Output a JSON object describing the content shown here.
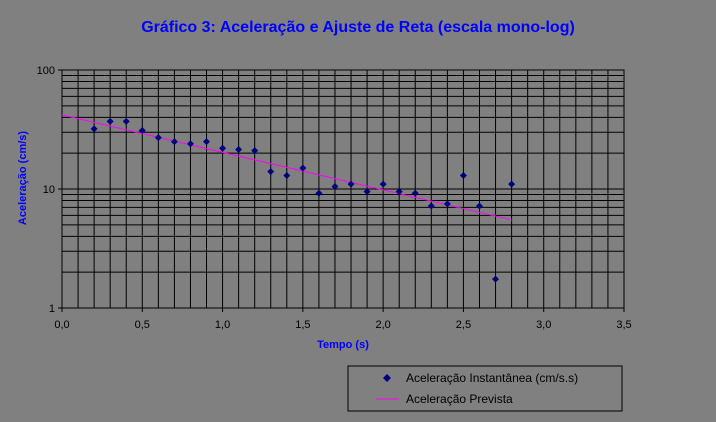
{
  "chart_data": {
    "type": "scatter",
    "title": "Gráfico 3: Aceleração e Ajuste de Reta (escala mono-log)",
    "xlabel": "Tempo (s)",
    "ylabel": "Aceleração (cm/s)",
    "xlim": [
      0,
      3.5
    ],
    "ylim": [
      1,
      100
    ],
    "yscale": "log",
    "x_ticks": [
      "0,0",
      "0,5",
      "1,0",
      "1,5",
      "2,0",
      "2,5",
      "3,0",
      "3,5"
    ],
    "y_ticks": [
      "1",
      "10",
      "100"
    ],
    "grid": true,
    "legend_position": "bottom-right",
    "series": [
      {
        "name": "Aceleração Instantânea (cm/s.s)",
        "kind": "scatter",
        "marker": "diamond",
        "color": "#000080",
        "x": [
          0.2,
          0.3,
          0.4,
          0.5,
          0.6,
          0.7,
          0.8,
          0.9,
          1.0,
          1.1,
          1.2,
          1.3,
          1.4,
          1.5,
          1.6,
          1.7,
          1.8,
          1.9,
          2.0,
          2.1,
          2.2,
          2.3,
          2.4,
          2.5,
          2.6,
          2.7,
          2.8
        ],
        "y": [
          32,
          37,
          37,
          31,
          27,
          25,
          24,
          25,
          22,
          21.5,
          21,
          14,
          13,
          15,
          9.2,
          10.5,
          11,
          9.5,
          11,
          9.5,
          9.2,
          7.2,
          7.5,
          13,
          7.2,
          1.75,
          11
        ]
      },
      {
        "name": "Aceleração Prevista",
        "kind": "line",
        "color": "#ff00ff",
        "x": [
          0.0,
          2.8
        ],
        "y": [
          42,
          5.5
        ]
      }
    ]
  }
}
